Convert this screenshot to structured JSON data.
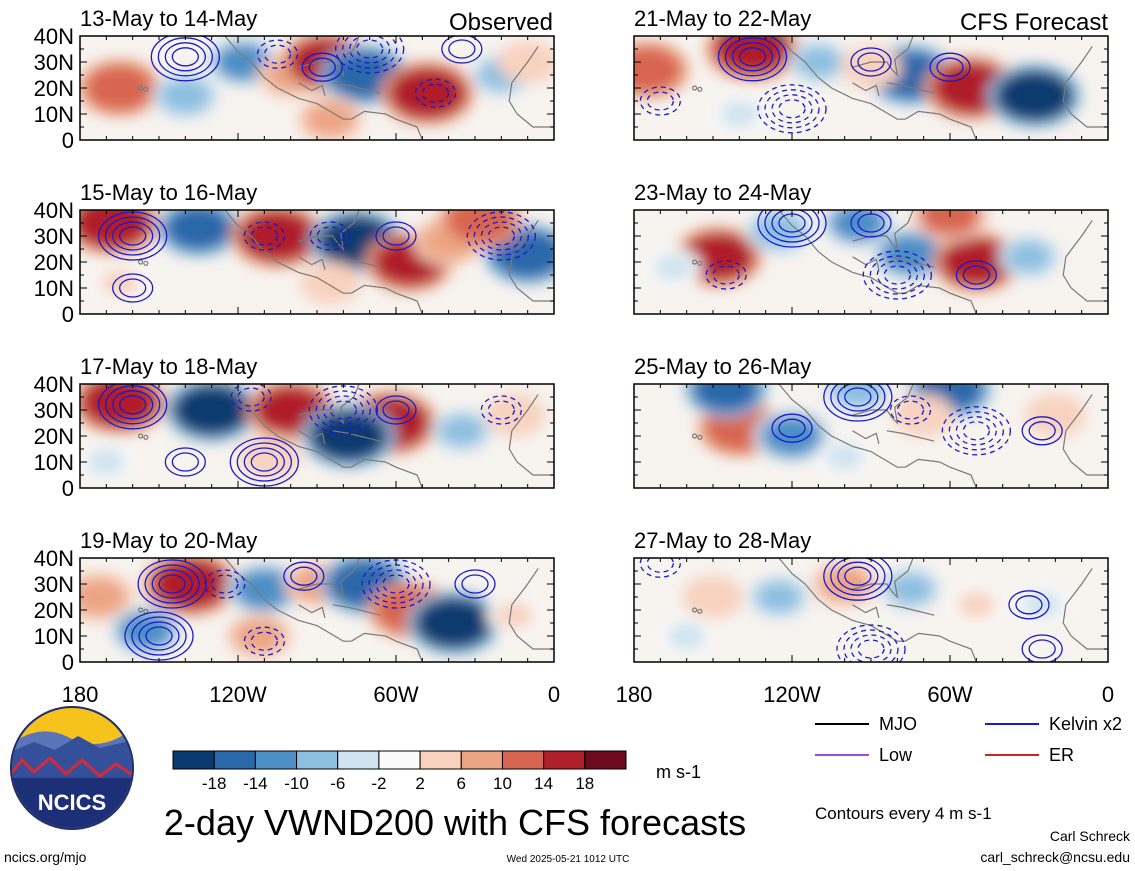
{
  "figure": {
    "title": "2-day VWND200 with CFS forecasts",
    "contour_note": "Contours every 4 m s-1",
    "units": "m s-1",
    "logo_text": "NCICS",
    "url": "ncics.org/mjo",
    "timestamp": "Wed 2025-05-21 1012 UTC",
    "author": "Carl Schreck",
    "email": "carl_schreck@ncsu.edu"
  },
  "legend": {
    "items": [
      {
        "label": "MJO",
        "color": "#000000"
      },
      {
        "label": "Kelvin x2",
        "color": "#1a1acc"
      },
      {
        "label": "Low",
        "color": "#9b4ddb"
      },
      {
        "label": "ER",
        "color": "#cc2222"
      }
    ]
  },
  "colorbar": {
    "labels": [
      "-18",
      "-14",
      "-10",
      "-6",
      "-2",
      "2",
      "6",
      "10",
      "14",
      "18"
    ],
    "colors": [
      "#0b3a70",
      "#2a68aa",
      "#4b8fc6",
      "#8dbfe0",
      "#cfe3f0",
      "#fafafa",
      "#f8d2bf",
      "#eca584",
      "#d8654f",
      "#b01f2a",
      "#6d0a1e"
    ]
  },
  "chart_data": {
    "type": "heatmap",
    "variable": "VWND200",
    "xlim": [
      -180,
      0
    ],
    "ylim": [
      0,
      40
    ],
    "x_tick_labels": [
      "180",
      "120W",
      "60W",
      "0"
    ],
    "x_ticks": [
      -180,
      -120,
      -60,
      0
    ],
    "y_tick_labels": [
      "40N",
      "30N",
      "20N",
      "10N",
      "0"
    ],
    "y_ticks": [
      40,
      30,
      20,
      10,
      0
    ],
    "columns": [
      {
        "header": "Observed",
        "panels": [
          "13-May to 14-May",
          "15-May to 16-May",
          "17-May to 18-May",
          "19-May to 20-May"
        ]
      },
      {
        "header": "CFS Forecast",
        "panels": [
          "21-May to 22-May",
          "23-May to 24-May",
          "25-May to 26-May",
          "27-May to 28-May"
        ]
      }
    ],
    "anomalies": [
      [
        [
          {
            "x": -165,
            "y": 20,
            "v": 14
          },
          {
            "x": -140,
            "y": 17,
            "v": -8
          },
          {
            "x": -118,
            "y": 30,
            "v": -10
          },
          {
            "x": -100,
            "y": 25,
            "v": 8
          },
          {
            "x": -87,
            "y": 30,
            "v": 16
          },
          {
            "x": -72,
            "y": 25,
            "v": -16
          },
          {
            "x": -48,
            "y": 18,
            "v": 18
          },
          {
            "x": -85,
            "y": 8,
            "v": 8
          },
          {
            "x": -20,
            "y": 25,
            "v": -6
          },
          {
            "x": -10,
            "y": 30,
            "v": 6
          }
        ],
        [
          {
            "x": -168,
            "y": 35,
            "v": 18
          },
          {
            "x": -135,
            "y": 33,
            "v": -14
          },
          {
            "x": -105,
            "y": 30,
            "v": 18
          },
          {
            "x": -75,
            "y": 28,
            "v": -18
          },
          {
            "x": -55,
            "y": 20,
            "v": 16
          },
          {
            "x": -40,
            "y": 28,
            "v": 10
          },
          {
            "x": -10,
            "y": 23,
            "v": -16
          },
          {
            "x": -165,
            "y": 12,
            "v": 4
          },
          {
            "x": -85,
            "y": 12,
            "v": 6
          },
          {
            "x": -28,
            "y": 36,
            "v": 14
          }
        ],
        [
          {
            "x": -165,
            "y": 33,
            "v": 18
          },
          {
            "x": -130,
            "y": 30,
            "v": -18
          },
          {
            "x": -100,
            "y": 30,
            "v": 16
          },
          {
            "x": -62,
            "y": 25,
            "v": 18
          },
          {
            "x": -78,
            "y": 20,
            "v": -18
          },
          {
            "x": -35,
            "y": 22,
            "v": -6
          },
          {
            "x": -170,
            "y": 10,
            "v": -4
          },
          {
            "x": -108,
            "y": 12,
            "v": 6
          },
          {
            "x": -15,
            "y": 28,
            "v": 6
          }
        ],
        [
          {
            "x": -173,
            "y": 25,
            "v": 10
          },
          {
            "x": -138,
            "y": 30,
            "v": 18
          },
          {
            "x": -155,
            "y": 12,
            "v": -10
          },
          {
            "x": -110,
            "y": 28,
            "v": -12
          },
          {
            "x": -90,
            "y": 30,
            "v": 8
          },
          {
            "x": -72,
            "y": 30,
            "v": -16
          },
          {
            "x": -55,
            "y": 20,
            "v": 14
          },
          {
            "x": -38,
            "y": 15,
            "v": -18
          },
          {
            "x": -112,
            "y": 10,
            "v": 8
          },
          {
            "x": -15,
            "y": 18,
            "v": 4
          }
        ]
      ],
      [
        [
          {
            "x": -175,
            "y": 27,
            "v": 14
          },
          {
            "x": -135,
            "y": 35,
            "v": 18
          },
          {
            "x": -110,
            "y": 30,
            "v": -6
          },
          {
            "x": -75,
            "y": 25,
            "v": -16
          },
          {
            "x": -52,
            "y": 20,
            "v": 18
          },
          {
            "x": -28,
            "y": 17,
            "v": -18
          },
          {
            "x": -90,
            "y": 28,
            "v": 6
          },
          {
            "x": -140,
            "y": 10,
            "v": -4
          }
        ],
        [
          {
            "x": -148,
            "y": 22,
            "v": 16
          },
          {
            "x": -125,
            "y": 32,
            "v": -8
          },
          {
            "x": -95,
            "y": 35,
            "v": -10
          },
          {
            "x": -75,
            "y": 23,
            "v": -12
          },
          {
            "x": -50,
            "y": 20,
            "v": 16
          },
          {
            "x": -30,
            "y": 22,
            "v": -6
          },
          {
            "x": -60,
            "y": 38,
            "v": 12
          },
          {
            "x": -165,
            "y": 18,
            "v": -4
          }
        ],
        [
          {
            "x": -140,
            "y": 23,
            "v": 14
          },
          {
            "x": -120,
            "y": 20,
            "v": -12
          },
          {
            "x": -145,
            "y": 38,
            "v": -14
          },
          {
            "x": -95,
            "y": 38,
            "v": -8
          },
          {
            "x": -60,
            "y": 38,
            "v": -14
          },
          {
            "x": -70,
            "y": 28,
            "v": 6
          },
          {
            "x": -20,
            "y": 28,
            "v": 6
          },
          {
            "x": -100,
            "y": 12,
            "v": -4
          }
        ],
        [
          {
            "x": -150,
            "y": 25,
            "v": 6
          },
          {
            "x": -125,
            "y": 25,
            "v": -6
          },
          {
            "x": -100,
            "y": 30,
            "v": 8
          },
          {
            "x": -75,
            "y": 28,
            "v": -6
          },
          {
            "x": -50,
            "y": 22,
            "v": 4
          },
          {
            "x": -25,
            "y": 22,
            "v": -4
          },
          {
            "x": -160,
            "y": 10,
            "v": -4
          }
        ]
      ]
    ],
    "kelvin_contours": [
      [
        [
          {
            "x": -140,
            "y": 32
          },
          {
            "x": -105,
            "y": 33
          },
          {
            "x": -88,
            "y": 28
          },
          {
            "x": -70,
            "y": 35
          },
          {
            "x": -35,
            "y": 35
          },
          {
            "x": -45,
            "y": 18
          }
        ],
        [
          {
            "x": -160,
            "y": 30
          },
          {
            "x": -85,
            "y": 30
          },
          {
            "x": -60,
            "y": 30
          },
          {
            "x": -20,
            "y": 30
          },
          {
            "x": -160,
            "y": 10
          },
          {
            "x": -110,
            "y": 30
          }
        ],
        [
          {
            "x": -160,
            "y": 32
          },
          {
            "x": -115,
            "y": 35
          },
          {
            "x": -140,
            "y": 10
          },
          {
            "x": -80,
            "y": 30
          },
          {
            "x": -60,
            "y": 30
          },
          {
            "x": -20,
            "y": 30
          },
          {
            "x": -110,
            "y": 10
          }
        ],
        [
          {
            "x": -145,
            "y": 30
          },
          {
            "x": -125,
            "y": 30
          },
          {
            "x": -95,
            "y": 33
          },
          {
            "x": -60,
            "y": 30
          },
          {
            "x": -30,
            "y": 30
          },
          {
            "x": -110,
            "y": 8
          },
          {
            "x": -150,
            "y": 10
          }
        ]
      ],
      [
        [
          {
            "x": -135,
            "y": 32
          },
          {
            "x": -170,
            "y": 15
          },
          {
            "x": -90,
            "y": 30
          },
          {
            "x": -120,
            "y": 12
          },
          {
            "x": -60,
            "y": 28
          }
        ],
        [
          {
            "x": -120,
            "y": 35
          },
          {
            "x": -145,
            "y": 15
          },
          {
            "x": -90,
            "y": 35
          },
          {
            "x": -80,
            "y": 15
          },
          {
            "x": -50,
            "y": 15
          }
        ],
        [
          {
            "x": -95,
            "y": 35
          },
          {
            "x": -75,
            "y": 30
          },
          {
            "x": -120,
            "y": 23
          },
          {
            "x": -50,
            "y": 22
          },
          {
            "x": -25,
            "y": 22
          }
        ],
        [
          {
            "x": -95,
            "y": 33
          },
          {
            "x": -170,
            "y": 38
          },
          {
            "x": -30,
            "y": 22
          },
          {
            "x": -90,
            "y": 5
          },
          {
            "x": -25,
            "y": 5
          }
        ]
      ]
    ]
  }
}
